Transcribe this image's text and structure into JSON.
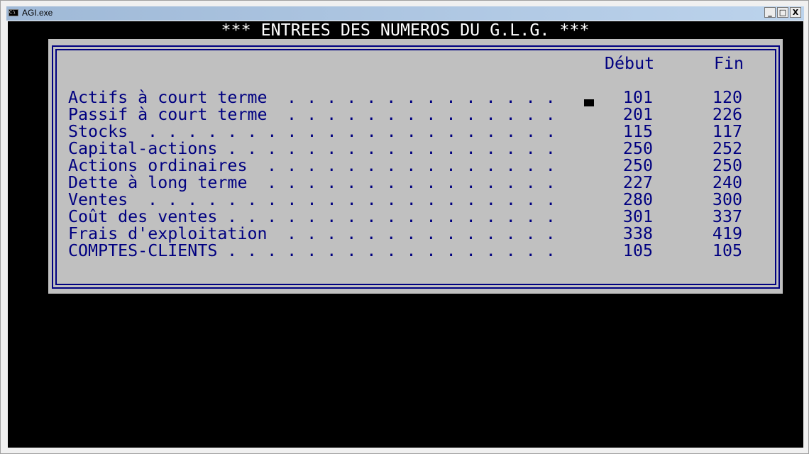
{
  "window": {
    "title": "AGI.exe",
    "icon": "console-icon",
    "minimize": "_",
    "maximize": "□",
    "close": "X"
  },
  "heading": "*** ENTREES DES NUMEROS DU G.L.G. ***",
  "columns": {
    "start": "Début",
    "end": "Fin"
  },
  "rows": [
    {
      "label": "Actifs à court terme",
      "start": "101",
      "end": "120"
    },
    {
      "label": "Passif à court terme",
      "start": "201",
      "end": "226"
    },
    {
      "label": "Stocks",
      "start": "115",
      "end": "117"
    },
    {
      "label": "Capital-actions",
      "start": "250",
      "end": "252"
    },
    {
      "label": "Actions ordinaires",
      "start": "250",
      "end": "250"
    },
    {
      "label": "Dette à long terme",
      "start": "227",
      "end": "240"
    },
    {
      "label": "Ventes",
      "start": "280",
      "end": "300"
    },
    {
      "label": "Coût des ventes",
      "start": "301",
      "end": "337"
    },
    {
      "label": "Frais d'exploitation",
      "start": "338",
      "end": "419"
    },
    {
      "label": "COMPTES-CLIENTS",
      "start": "105",
      "end": "105"
    }
  ],
  "colors": {
    "text": "#000080",
    "panel": "#c0c0c0",
    "background": "#000000"
  }
}
